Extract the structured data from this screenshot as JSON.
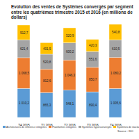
{
  "chart_data": {
    "type": "bar",
    "title": "Evolution des ventes de Systèmes convergés par segment entre les quatrièmes trimestre 2015 et 2016 (en millions de dollars)",
    "source": "Source : IDC",
    "categories": [
      "T4 2015",
      "T1 2016",
      "T2 2016",
      "T3 2016",
      "T4 2016"
    ],
    "stacked": true,
    "data_labels": true,
    "tick_labels": "x",
    "legend": "bottom",
    "series": [
      {
        "name": "Architectures de référence intégrées",
        "color": "#5b9bd5",
        "values": [
          1010.2,
          865.3,
          948.1,
          890.4,
          1005.6
        ],
        "value_labels": [
          "1 010,2",
          "865,3",
          "948,1",
          "890,4",
          "1 005,6"
        ]
      },
      {
        "name": "Plateformes intégrées",
        "color": "#ed7d31",
        "values": [
          1068.5,
          812.6,
          1046.3,
          850.7,
          1080.2
        ],
        "value_labels": [
          "1 068,5",
          "812,6",
          "1 046,3",
          "850,7",
          "1 080,2"
        ]
      },
      {
        "name": "Systèmes hyperconvergés",
        "color": "#a5a5a5",
        "values": [
          621.4,
          520.8,
          600.2,
          551.6,
          610.5
        ],
        "value_labels": [
          "621,4",
          "520,8",
          "600,2",
          "551,6",
          "610,5"
        ]
      },
      {
        "name": "Systèmes de stockage intégrés",
        "color": "#ffc000",
        "values": [
          512.7,
          401.5,
          520.9,
          420.3,
          540.8
        ],
        "value_labels": [
          "512,7",
          "401,5",
          "520,9",
          "420,3",
          "540,8"
        ]
      }
    ]
  }
}
